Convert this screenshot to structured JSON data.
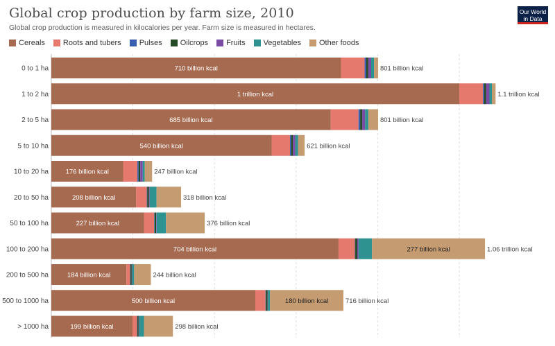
{
  "header": {
    "title": "Global crop production by farm size, 2010",
    "subtitle": "Global crop production is measured in kilocalories per year. Farm size is measured in hectares.",
    "logo_line1": "Our World",
    "logo_line2": "in Data"
  },
  "chart_data": {
    "type": "bar",
    "orientation": "horizontal",
    "stacked": true,
    "unit": "billion kcal",
    "title": "Global crop production by farm size, 2010",
    "subtitle": "Global crop production is measured in kilocalories per year. Farm size is measured in hectares.",
    "xlim": [
      0,
      1100
    ],
    "grid": true,
    "legend_position": "top-left",
    "categories": [
      "0 to 1 ha",
      "1 to 2 ha",
      "2 to 5 ha",
      "5 to 10 ha",
      "10 to 20 ha",
      "20 to 50 ha",
      "50 to 100 ha",
      "100 to 200 ha",
      "200 to 500 ha",
      "500 to 1000 ha",
      "> 1000 ha"
    ],
    "series": [
      {
        "name": "Cereals",
        "color": "#a56a50",
        "values": [
          710,
          1000,
          685,
          540,
          176,
          208,
          227,
          704,
          184,
          500,
          199
        ]
      },
      {
        "name": "Roots and tubers",
        "color": "#e5796e",
        "values": [
          58,
          58,
          68,
          45,
          35,
          26,
          25,
          40,
          9,
          25,
          11
        ]
      },
      {
        "name": "Pulses",
        "color": "#3a5fb0",
        "values": [
          4,
          3,
          4,
          3,
          3,
          1,
          1,
          1,
          1,
          1,
          1
        ]
      },
      {
        "name": "Oilcrops",
        "color": "#254a26",
        "values": [
          5,
          5,
          5,
          4,
          4,
          4,
          4,
          5,
          3,
          4,
          3
        ]
      },
      {
        "name": "Fruits",
        "color": "#7a4ca3",
        "values": [
          7,
          8,
          7,
          6,
          6,
          2,
          1,
          3,
          1,
          1,
          1
        ]
      },
      {
        "name": "Vegetables",
        "color": "#2e9290",
        "values": [
          7,
          6,
          8,
          7,
          5,
          17,
          23,
          33,
          5,
          5,
          12
        ]
      },
      {
        "name": "Other foods",
        "color": "#c59b71",
        "values": [
          10,
          9,
          24,
          16,
          18,
          60,
          95,
          277,
          41,
          180,
          71
        ]
      }
    ],
    "totals_labels": [
      "801 billion kcal",
      "1.1 trillion kcal",
      "801 billion kcal",
      "621 billion kcal",
      "247 billion kcal",
      "318 billion kcal",
      "376 billion kcal",
      "1.06 trillion kcal",
      "244 billion kcal",
      "716 billion kcal",
      "298 billion kcal"
    ],
    "segment_labels": [
      {
        "row": 0,
        "series": 0,
        "text": "710 billion kcal"
      },
      {
        "row": 1,
        "series": 0,
        "text": "1 trillion kcal"
      },
      {
        "row": 2,
        "series": 0,
        "text": "685 billion kcal"
      },
      {
        "row": 3,
        "series": 0,
        "text": "540 billion kcal"
      },
      {
        "row": 4,
        "series": 0,
        "text": "176 billion kcal"
      },
      {
        "row": 5,
        "series": 0,
        "text": "208 billion kcal"
      },
      {
        "row": 6,
        "series": 0,
        "text": "227 billion kcal"
      },
      {
        "row": 7,
        "series": 0,
        "text": "704 billion kcal"
      },
      {
        "row": 7,
        "series": 6,
        "text": "277 billion kcal"
      },
      {
        "row": 8,
        "series": 0,
        "text": "184 billion kcal"
      },
      {
        "row": 9,
        "series": 0,
        "text": "500 billion kcal"
      },
      {
        "row": 9,
        "series": 6,
        "text": "180 billion kcal"
      },
      {
        "row": 10,
        "series": 0,
        "text": "199 billion kcal"
      }
    ]
  }
}
